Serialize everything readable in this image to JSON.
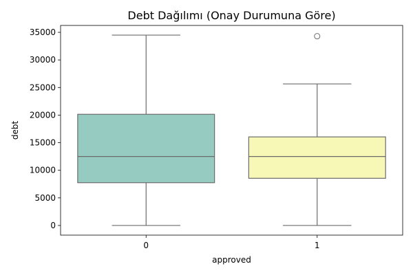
{
  "chart_data": {
    "type": "box",
    "title": "Debt Dağılımı (Onay Durumuna Göre)",
    "xlabel": "approved",
    "ylabel": "debt",
    "categories": [
      "0",
      "1"
    ],
    "ylim": [
      -1750,
      36250
    ],
    "yticks": [
      0,
      5000,
      10000,
      15000,
      20000,
      25000,
      30000,
      35000
    ],
    "grid": false,
    "legend": "none",
    "boxes": [
      {
        "category": "0",
        "whisker_low": 0,
        "q1": 7750,
        "median": 12500,
        "q3": 20150,
        "whisker_high": 34500,
        "outliers": [],
        "color": "#96CBC2"
      },
      {
        "category": "1",
        "whisker_low": 0,
        "q1": 8550,
        "median": 12500,
        "q3": 16050,
        "whisker_high": 25650,
        "outliers": [
          34300
        ],
        "color": "#F7F7B6"
      }
    ],
    "line_color": "#6b6b6b"
  }
}
